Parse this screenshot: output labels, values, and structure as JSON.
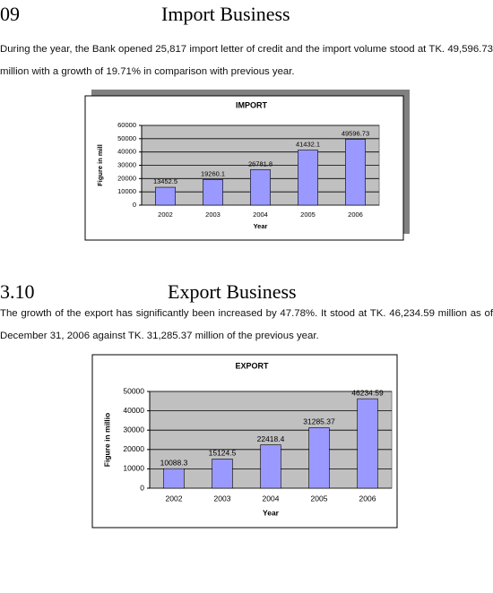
{
  "sections": [
    {
      "number": "09",
      "title": "Import Business",
      "text": "During the year, the Bank opened 25,817 import letter of credit and the import volume stood at TK. 49,596.73 million with a growth of 19.71% in comparison with previous year."
    },
    {
      "number": "3.10",
      "title": "Export Business",
      "text": "The growth of the export has significantly been increased by 47.78%. It stood at TK. 46,234.59 million as of December 31, 2006 against TK. 31,285.37 million of the previous year."
    }
  ],
  "chart_data": [
    {
      "type": "bar",
      "title": "IMPORT",
      "y_label": "Figure in mill",
      "x_label": "Year",
      "categories": [
        "2002",
        "2003",
        "2004",
        "2005",
        "2006"
      ],
      "values": [
        13452.5,
        19260.1,
        26781.8,
        41432.1,
        49596.73
      ],
      "color": "#9999ff",
      "ylim": [
        0,
        60000
      ],
      "yticks": [
        0,
        10000,
        20000,
        30000,
        40000,
        50000,
        60000
      ],
      "grid": true
    },
    {
      "type": "bar",
      "title": "EXPORT",
      "y_label": "Figure in millio",
      "x_label": "Year",
      "categories": [
        "2002",
        "2003",
        "2004",
        "2005",
        "2006"
      ],
      "values": [
        10088.3,
        15124.5,
        22418.4,
        31285.37,
        46234.59
      ],
      "color": "#9999ff",
      "ylim": [
        0,
        50000
      ],
      "yticks": [
        0,
        10000,
        20000,
        30000,
        40000,
        50000
      ],
      "grid": true
    }
  ]
}
